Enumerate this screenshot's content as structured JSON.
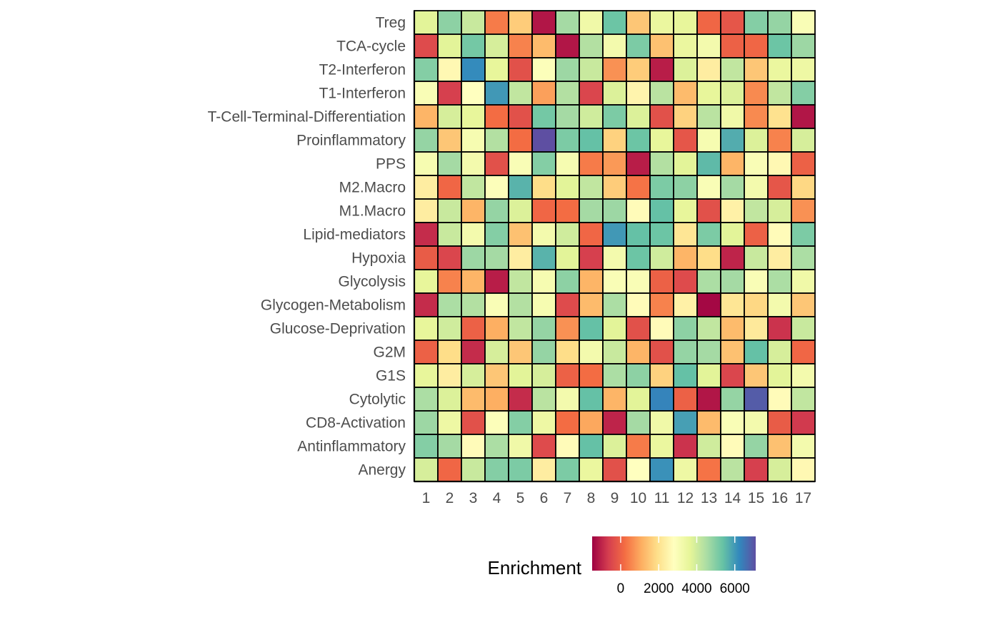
{
  "chart_data": {
    "type": "heatmap",
    "title": "",
    "xlabel": "",
    "ylabel": "",
    "x": [
      "1",
      "2",
      "3",
      "4",
      "5",
      "6",
      "7",
      "8",
      "9",
      "10",
      "11",
      "12",
      "13",
      "14",
      "15",
      "16",
      "17"
    ],
    "y": [
      "Treg",
      "TCA-cycle",
      "T2-Interferon",
      "T1-Interferon",
      "T-Cell-Terminal-Differentiation",
      "Proinflammatory",
      "PPS",
      "M2.Macro",
      "M1.Macro",
      "Lipid-mediators",
      "Hypoxia",
      "Glycolysis",
      "Glycogen-Metabolism",
      "Glucose-Deprivation",
      "G2M",
      "G1S",
      "Cytolytic",
      "CD8-Activation",
      "Antinflammatory",
      "Anergy"
    ],
    "values": [
      [
        3700,
        4900,
        4100,
        400,
        1600,
        -1200,
        4600,
        3300,
        5300,
        1500,
        3500,
        3600,
        100,
        -200,
        5000,
        4800,
        3000
      ],
      [
        -400,
        3700,
        5200,
        3900,
        500,
        1300,
        -1200,
        4400,
        3200,
        5100,
        1400,
        3500,
        3200,
        0,
        100,
        5300,
        4700
      ],
      [
        5000,
        2600,
        6200,
        3600,
        -300,
        2900,
        4700,
        4100,
        700,
        1600,
        -1100,
        3800,
        2300,
        4200,
        1500,
        3500,
        3400
      ],
      [
        3000,
        -600,
        2800,
        6000,
        4200,
        900,
        4400,
        -500,
        3800,
        2500,
        4300,
        1300,
        3600,
        3800,
        600,
        4200,
        5000
      ],
      [
        1200,
        3900,
        3600,
        200,
        -300,
        5200,
        4600,
        4000,
        5100,
        3800,
        -300,
        1700,
        4300,
        3300,
        600,
        2000,
        -1200
      ],
      [
        4800,
        1500,
        3100,
        4400,
        200,
        7100,
        5100,
        5400,
        1700,
        5300,
        3600,
        -200,
        3100,
        5700,
        3800,
        500,
        3900
      ],
      [
        3100,
        4600,
        3200,
        -300,
        3000,
        5000,
        3100,
        400,
        800,
        -1100,
        4400,
        3700,
        5500,
        1200,
        3000,
        2600,
        0
      ],
      [
        2300,
        100,
        4200,
        2900,
        5600,
        1900,
        3700,
        4200,
        1600,
        300,
        5100,
        4900,
        3000,
        4600,
        3200,
        -200,
        1800
      ],
      [
        2300,
        4100,
        1200,
        4800,
        3800,
        100,
        200,
        4600,
        4700,
        2700,
        5400,
        3600,
        -300,
        2400,
        4200,
        3900,
        700
      ],
      [
        -900,
        4100,
        3200,
        5000,
        1400,
        3200,
        4000,
        100,
        6000,
        5400,
        5300,
        2100,
        5100,
        3700,
        0,
        2700,
        5100
      ],
      [
        -100,
        -500,
        4700,
        4600,
        2300,
        5600,
        3700,
        -600,
        3200,
        5300,
        4000,
        1200,
        1900,
        -1000,
        4100,
        2300,
        4500
      ],
      [
        3600,
        500,
        1200,
        -1100,
        4200,
        3100,
        4900,
        1200,
        3000,
        3000,
        0,
        -400,
        4500,
        4600,
        3000,
        4500,
        3300
      ],
      [
        -900,
        4500,
        4400,
        3000,
        4400,
        3100,
        -400,
        1300,
        4500,
        2700,
        500,
        2400,
        -1400,
        2100,
        1800,
        3200,
        1500
      ],
      [
        3600,
        4000,
        0,
        1100,
        4200,
        4800,
        700,
        5400,
        3700,
        -300,
        2700,
        4900,
        4200,
        1300,
        2200,
        -800,
        4100
      ],
      [
        0,
        1900,
        -900,
        3900,
        1500,
        4800,
        1900,
        3200,
        4100,
        1200,
        -300,
        4800,
        4600,
        1400,
        5400,
        3900,
        100
      ],
      [
        3600,
        2300,
        3900,
        1500,
        3700,
        3900,
        0,
        200,
        4500,
        4900,
        1700,
        5400,
        3700,
        -500,
        1500,
        3700,
        3200
      ],
      [
        4500,
        3800,
        1300,
        1100,
        -900,
        4300,
        3200,
        5400,
        1200,
        3700,
        6300,
        0,
        -1200,
        4800,
        6900,
        2700,
        4200
      ],
      [
        4700,
        3400,
        -300,
        2900,
        5000,
        3400,
        200,
        1000,
        -1000,
        4600,
        3300,
        5900,
        1300,
        3000,
        3200,
        -100,
        -700
      ],
      [
        5000,
        4600,
        2700,
        4500,
        3300,
        -400,
        2700,
        5400,
        3800,
        400,
        3500,
        -800,
        4000,
        2700,
        4800,
        1400,
        3200
      ],
      [
        3900,
        100,
        4100,
        5000,
        5100,
        2300,
        5100,
        3500,
        -300,
        2800,
        6100,
        3400,
        300,
        4300,
        -600,
        3900,
        2600
      ]
    ],
    "zlim": [
      -1500,
      7100
    ],
    "legend": {
      "title": "Enrichment",
      "position": "bottom",
      "ticks": [
        0,
        2000,
        4000,
        6000
      ],
      "tick_labels": [
        "0",
        "2000",
        "4000",
        "6000"
      ]
    },
    "palette": "Spectral",
    "colors": [
      "#9E0142",
      "#D53E4F",
      "#F46D43",
      "#FDAE61",
      "#FEE08B",
      "#FFFFBF",
      "#E6F598",
      "#ABDDA4",
      "#66C2A5",
      "#3288BD",
      "#5E4FA2"
    ],
    "grid": false
  }
}
